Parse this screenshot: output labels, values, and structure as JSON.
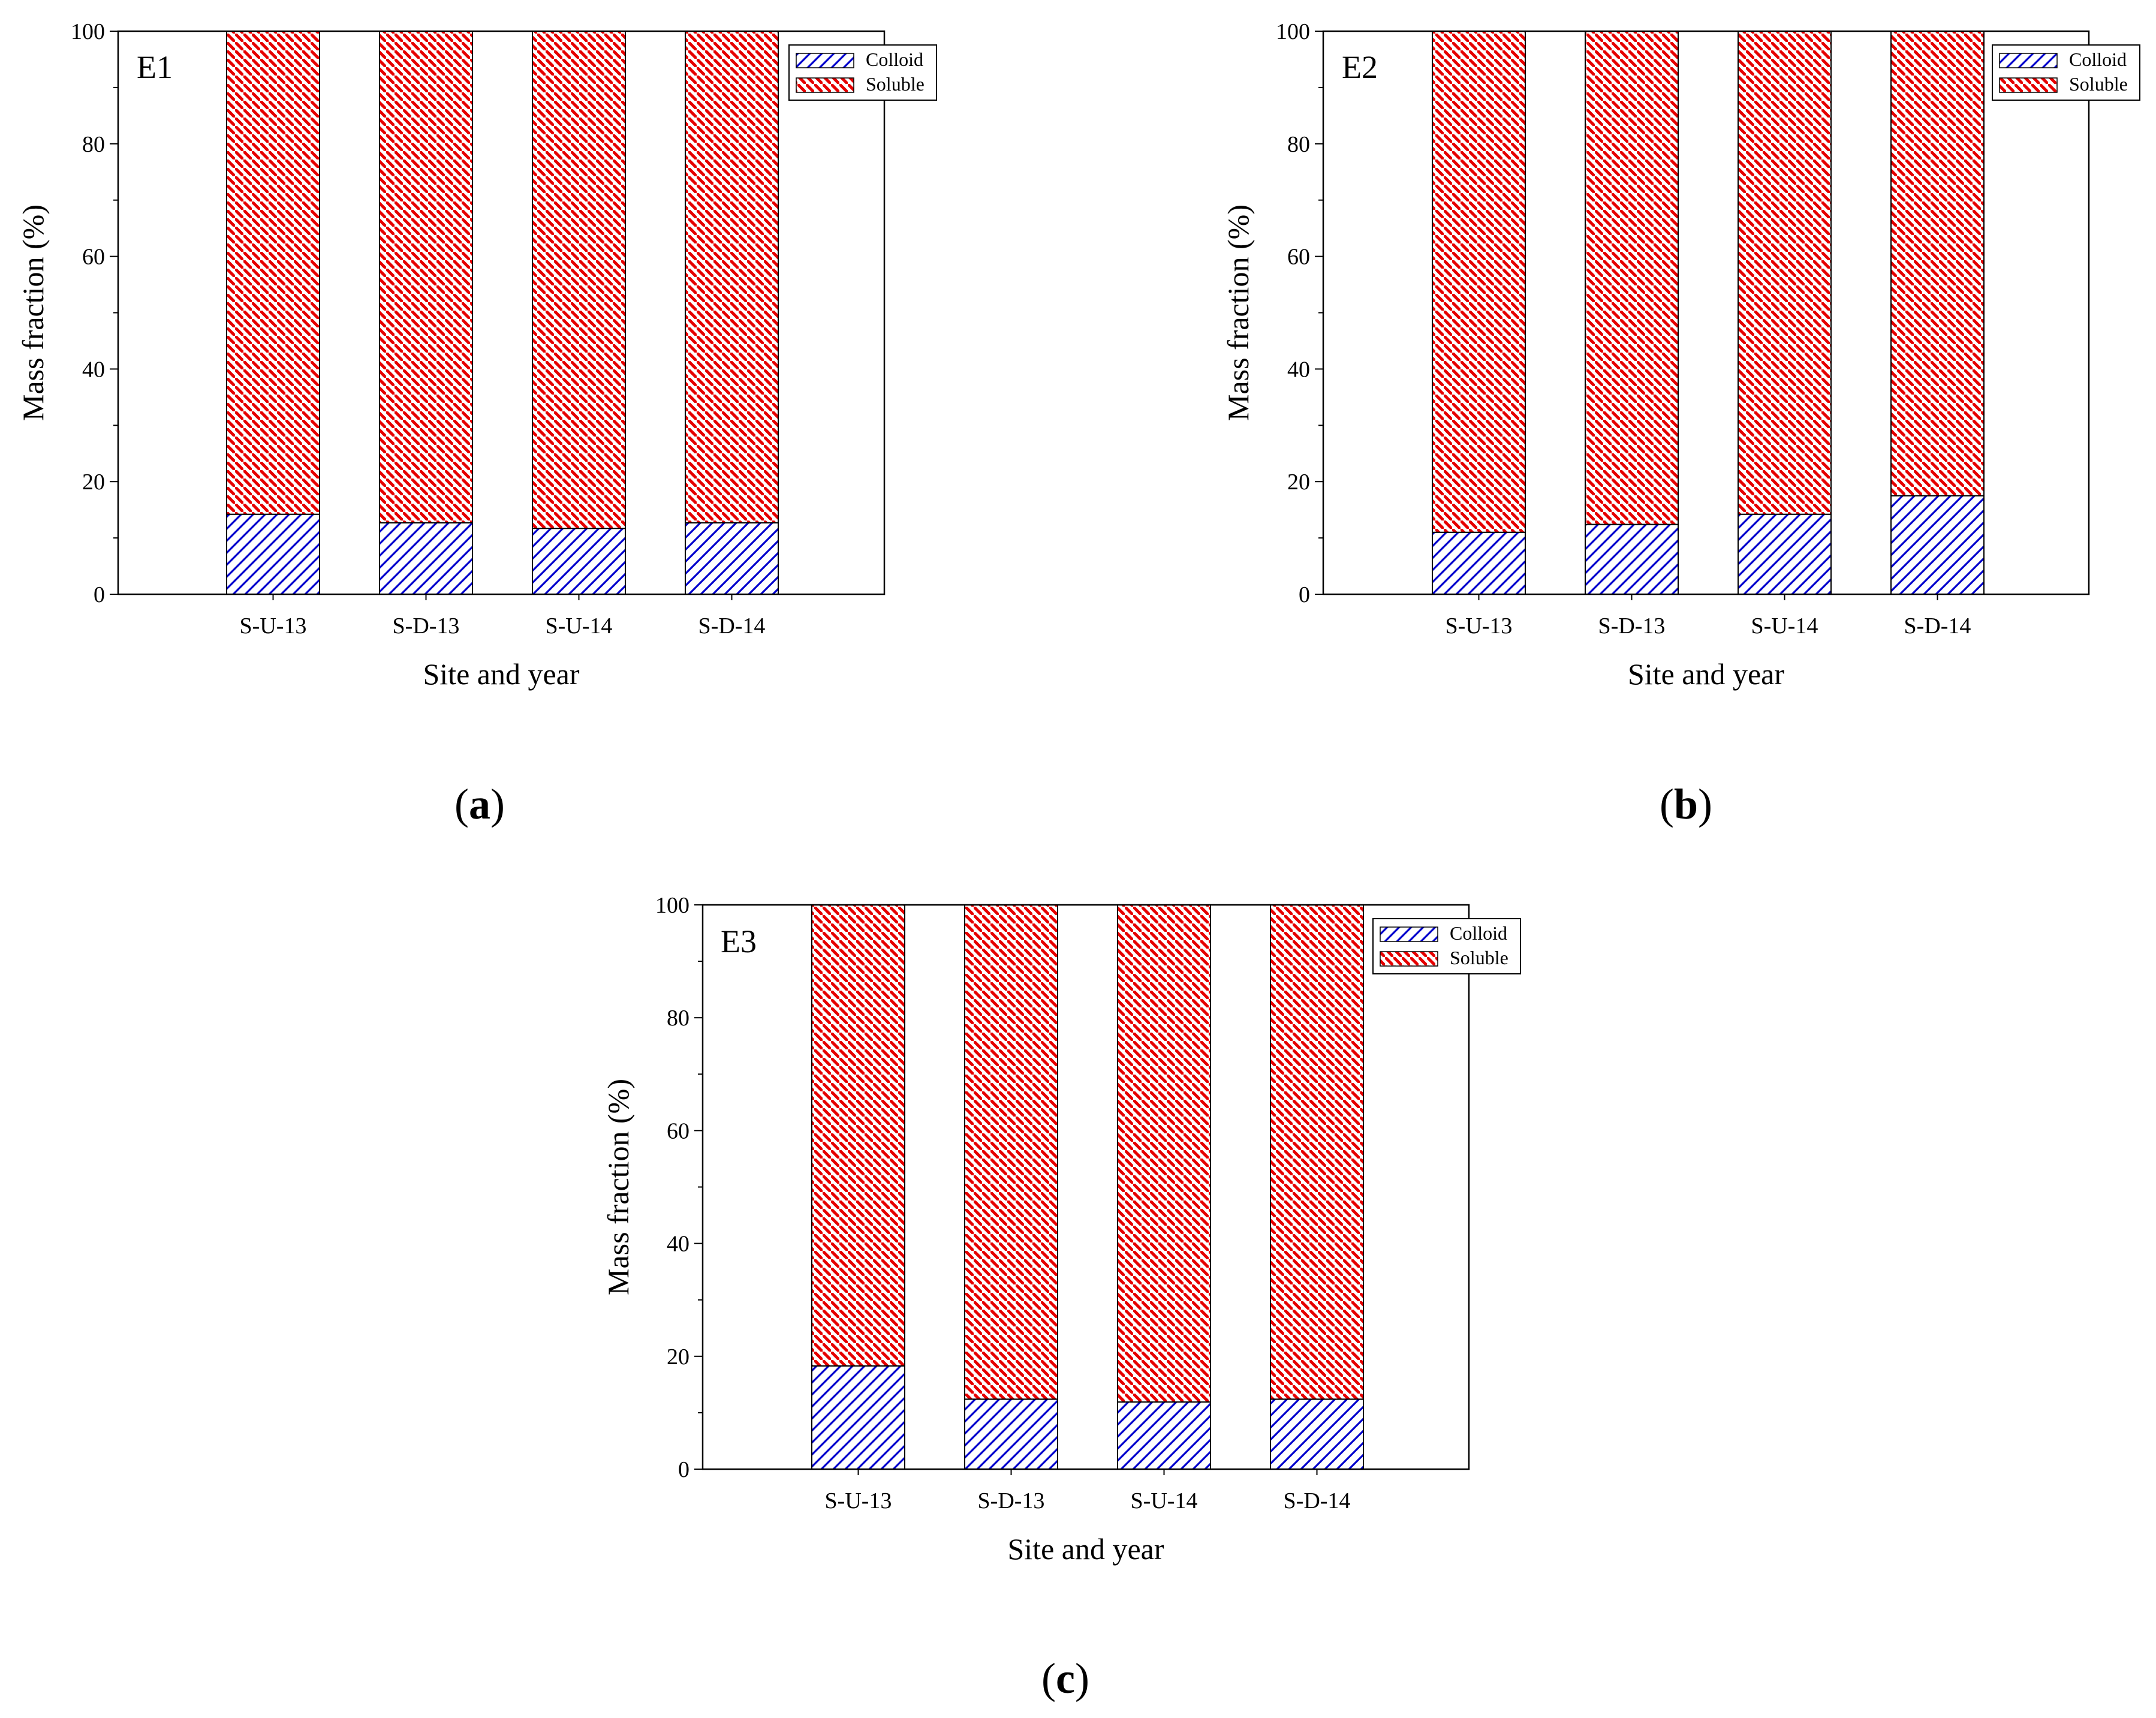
{
  "chart_data": [
    {
      "type": "bar",
      "stacked": true,
      "title": "E1",
      "caption_letter": "a",
      "categories": [
        "S-U-13",
        "S-D-13",
        "S-U-14",
        "S-D-14"
      ],
      "series": [
        {
          "name": "Colloid",
          "values": [
            14.2,
            12.7,
            11.7,
            12.7
          ]
        },
        {
          "name": "Soluble",
          "values": [
            85.8,
            87.3,
            88.3,
            87.3
          ]
        }
      ],
      "xlabel": "Site and year",
      "ylabel": "Mass fraction (%)",
      "ylim": [
        0,
        100
      ],
      "yticks": [
        "0",
        "20",
        "40",
        "60",
        "80",
        "100"
      ],
      "legend": "top-right"
    },
    {
      "type": "bar",
      "stacked": true,
      "title": "E2",
      "caption_letter": "b",
      "categories": [
        "S-U-13",
        "S-D-13",
        "S-U-14",
        "S-D-14"
      ],
      "series": [
        {
          "name": "Colloid",
          "values": [
            11.0,
            12.4,
            14.2,
            17.5
          ]
        },
        {
          "name": "Soluble",
          "values": [
            89.0,
            87.6,
            85.8,
            82.5
          ]
        }
      ],
      "xlabel": "Site and year",
      "ylabel": "Mass fraction (%)",
      "ylim": [
        0,
        100
      ],
      "yticks": [
        "0",
        "20",
        "40",
        "60",
        "80",
        "100"
      ],
      "legend": "top-right"
    },
    {
      "type": "bar",
      "stacked": true,
      "title": "E3",
      "caption_letter": "c",
      "categories": [
        "S-U-13",
        "S-D-13",
        "S-U-14",
        "S-D-14"
      ],
      "series": [
        {
          "name": "Colloid",
          "values": [
            18.3,
            12.4,
            11.9,
            12.4
          ]
        },
        {
          "name": "Soluble",
          "values": [
            81.7,
            87.6,
            88.1,
            87.6
          ]
        }
      ],
      "xlabel": "Site and year",
      "ylabel": "Mass fraction (%)",
      "ylim": [
        0,
        100
      ],
      "yticks": [
        "0",
        "20",
        "40",
        "60",
        "80",
        "100"
      ],
      "legend": "top-right"
    }
  ],
  "colors": {
    "colloid": "#0000cc",
    "soluble": "#e60000",
    "axis": "#000000"
  }
}
